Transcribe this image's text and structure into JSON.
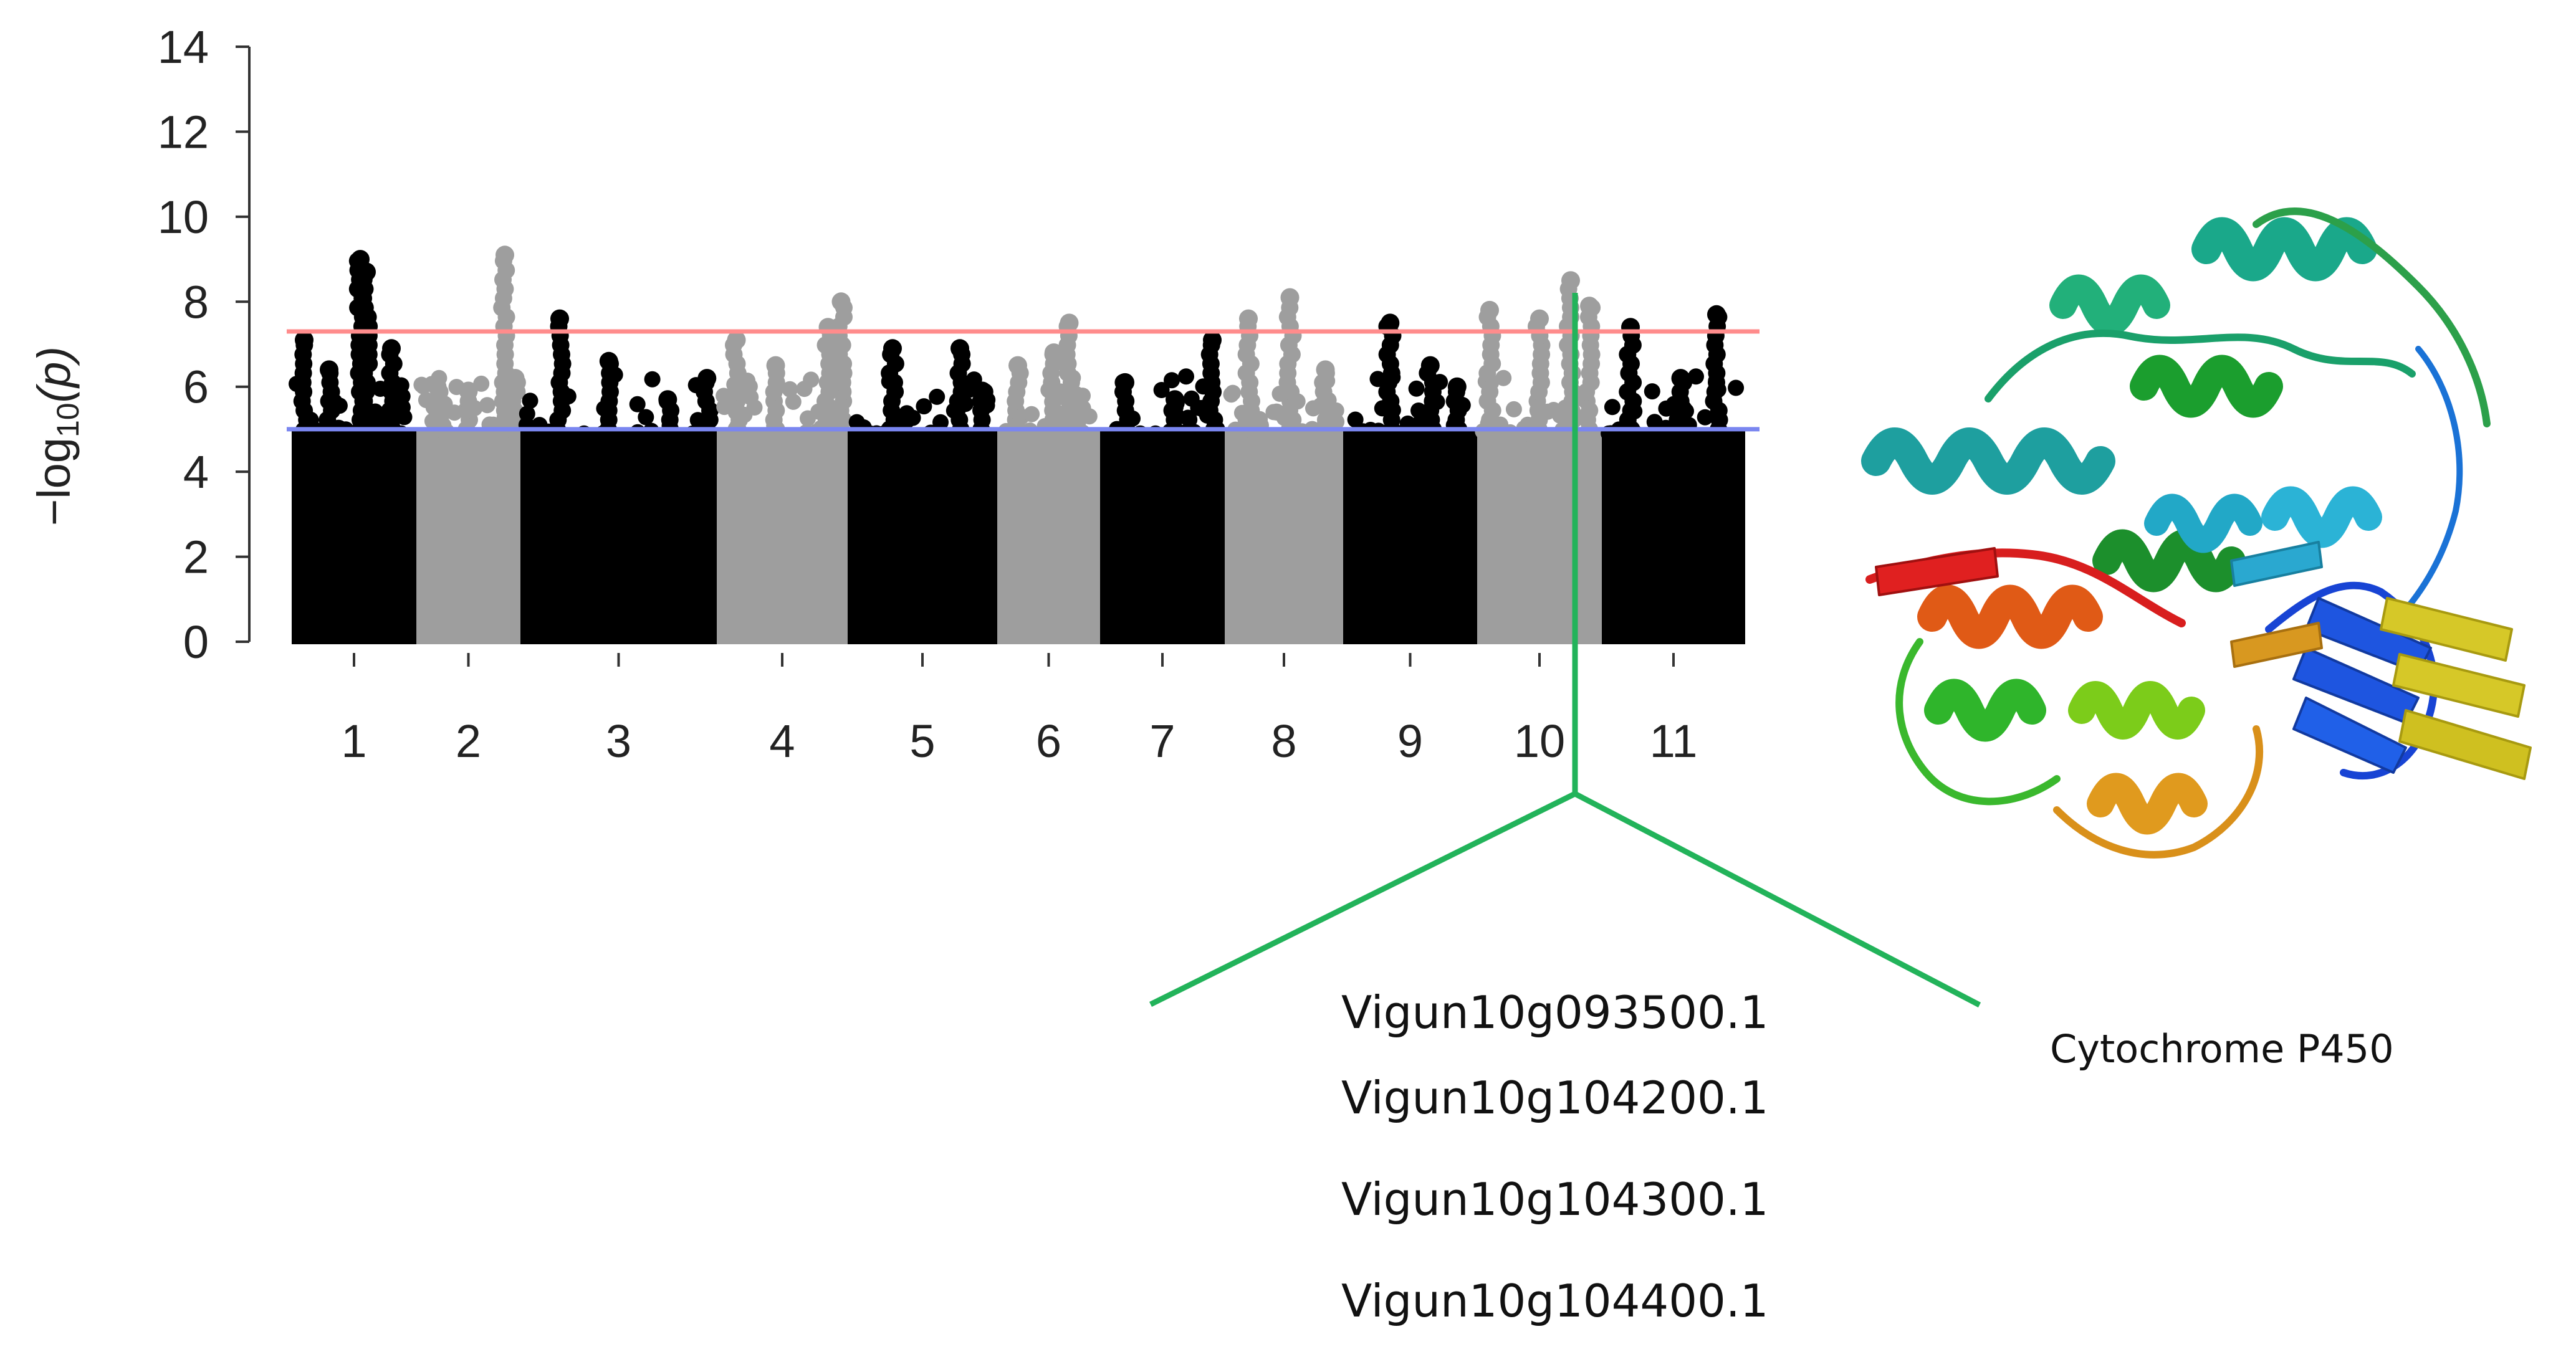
{
  "chart_data": {
    "type": "scatter",
    "subtype": "manhattan",
    "ylabel_prefix": "−log",
    "ylabel_sub": "10",
    "ylabel_suffix": "(p)",
    "ylim": [
      0,
      14
    ],
    "yticks": [
      0,
      2,
      4,
      6,
      8,
      10,
      12,
      14
    ],
    "thresholds": [
      {
        "value": 7.3,
        "color": "#ff8c8c"
      },
      {
        "value": 5.0,
        "color": "#7a86f0"
      }
    ],
    "chromosome_colors": [
      "#000000",
      "#9e9e9e"
    ],
    "chromosomes": [
      {
        "label": "1",
        "peaks": [
          {
            "pos": 0.1,
            "value": 7.1
          },
          {
            "pos": 0.3,
            "value": 6.4
          },
          {
            "pos": 0.55,
            "value": 9.0
          },
          {
            "pos": 0.6,
            "value": 8.7
          },
          {
            "pos": 0.8,
            "value": 6.9
          }
        ]
      },
      {
        "label": "2",
        "peaks": [
          {
            "pos": 0.2,
            "value": 6.0
          },
          {
            "pos": 0.5,
            "value": 5.9
          },
          {
            "pos": 0.85,
            "value": 9.1
          },
          {
            "pos": 0.95,
            "value": 6.2
          }
        ]
      },
      {
        "label": "3",
        "peaks": [
          {
            "pos": 0.2,
            "value": 7.6
          },
          {
            "pos": 0.45,
            "value": 6.6
          },
          {
            "pos": 0.75,
            "value": 5.7
          },
          {
            "pos": 0.95,
            "value": 6.2
          }
        ]
      },
      {
        "label": "4",
        "peaks": [
          {
            "pos": 0.15,
            "value": 7.1
          },
          {
            "pos": 0.45,
            "value": 6.5
          },
          {
            "pos": 0.85,
            "value": 7.4
          },
          {
            "pos": 0.95,
            "value": 8.0
          }
        ]
      },
      {
        "label": "5",
        "peaks": [
          {
            "pos": 0.3,
            "value": 6.9
          },
          {
            "pos": 0.75,
            "value": 6.9
          },
          {
            "pos": 0.9,
            "value": 5.9
          }
        ]
      },
      {
        "label": "6",
        "peaks": [
          {
            "pos": 0.2,
            "value": 6.5
          },
          {
            "pos": 0.55,
            "value": 6.8
          },
          {
            "pos": 0.7,
            "value": 7.5
          }
        ]
      },
      {
        "label": "7",
        "peaks": [
          {
            "pos": 0.2,
            "value": 6.1
          },
          {
            "pos": 0.6,
            "value": 5.7
          },
          {
            "pos": 0.9,
            "value": 7.1
          }
        ]
      },
      {
        "label": "8",
        "peaks": [
          {
            "pos": 0.2,
            "value": 7.6
          },
          {
            "pos": 0.55,
            "value": 8.1
          },
          {
            "pos": 0.85,
            "value": 6.4
          }
        ]
      },
      {
        "label": "9",
        "peaks": [
          {
            "pos": 0.35,
            "value": 7.5
          },
          {
            "pos": 0.65,
            "value": 6.5
          },
          {
            "pos": 0.85,
            "value": 6.0
          }
        ]
      },
      {
        "label": "10",
        "peaks": [
          {
            "pos": 0.1,
            "value": 7.8
          },
          {
            "pos": 0.5,
            "value": 7.6
          },
          {
            "pos": 0.75,
            "value": 8.5
          },
          {
            "pos": 0.9,
            "value": 7.9
          }
        ]
      },
      {
        "label": "11",
        "peaks": [
          {
            "pos": 0.2,
            "value": 7.4
          },
          {
            "pos": 0.55,
            "value": 6.2
          },
          {
            "pos": 0.8,
            "value": 7.7
          }
        ]
      }
    ]
  },
  "annotation": {
    "line_color": "#22b35a",
    "genes": [
      "Vigun10g093500.1",
      "Vigun10g104200.1",
      "Vigun10g104300.1",
      "Vigun10g104400.1"
    ],
    "protein_caption": "Cytochrome P450"
  }
}
